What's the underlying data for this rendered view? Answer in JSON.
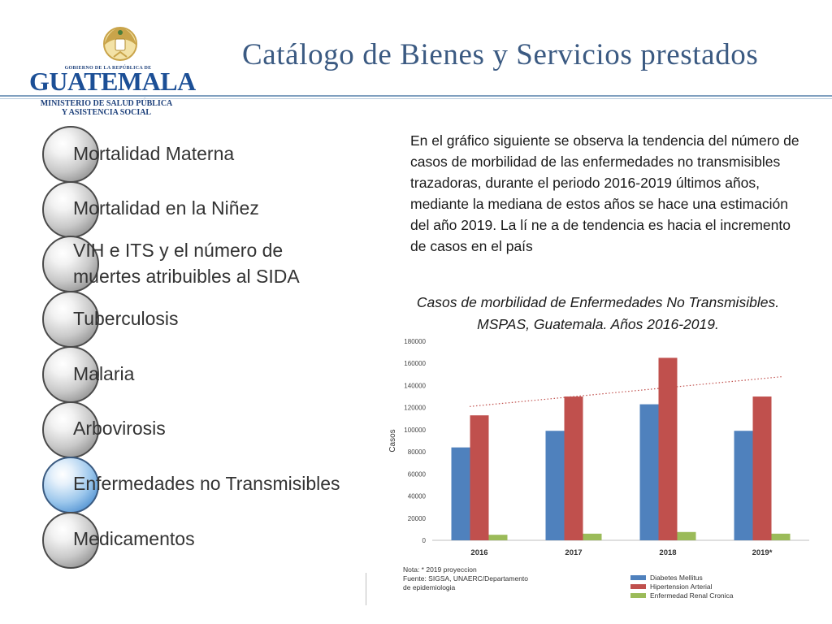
{
  "header": {
    "title": "Catálogo de Bienes y Servicios prestados",
    "logo": {
      "gov_line": "GOBIERNO DE LA REPÚBLICA DE",
      "country": "GUATEMALA",
      "ministry_line1": "MINISTERIO DE SALUD PÚBLICA",
      "ministry_line2": "Y ASISTENCIA SOCIAL"
    }
  },
  "nav": {
    "items": [
      {
        "label": "Mortalidad Materna",
        "active": false
      },
      {
        "label": "Mortalidad en la Niñez",
        "active": false
      },
      {
        "label": "VIH e ITS y el número de",
        "label2": "muertes atribuibles al SIDA",
        "active": false
      },
      {
        "label": "Tuberculosis",
        "active": false
      },
      {
        "label": "Malaria",
        "active": false
      },
      {
        "label": "Arbovirosis",
        "active": false
      },
      {
        "label": "Enfermedades no Transmisibles",
        "active": true
      },
      {
        "label": "Medicamentos",
        "active": false
      }
    ]
  },
  "content": {
    "paragraph": "En el gráfico siguiente se observa la tendencia del número de casos de morbilidad de las enfermedades no transmisibles trazadoras, durante el periodo 2016-2019 últimos años, mediante la mediana de estos años se hace una estimación del año 2019.   La lí ne a de tendencia es hacia el incremento de casos en el país",
    "caption_line1": "Casos de morbilidad de Enfermedades No Transmisibles.",
    "caption_line2": "MSPAS, Guatemala. Años 2016-2019.",
    "note_line1": "Nota: * 2019 proyeccion",
    "note_line2": "Fuente: SIGSA, UNAERC/Departamento",
    "note_line3": "de epidemiologia"
  },
  "colors": {
    "diabetes": "#4f81bd",
    "hipertension": "#c0504d",
    "renal": "#9bbb59",
    "trend": "#c0504d",
    "active_nav": "#4d8fd0"
  },
  "chart_data": {
    "type": "bar",
    "categories": [
      "2016",
      "2017",
      "2018",
      "2019*"
    ],
    "series": [
      {
        "name": "Diabetes Mellitus",
        "values": [
          84000,
          99000,
          123000,
          99000
        ]
      },
      {
        "name": "Hipertension Arterial",
        "values": [
          113000,
          130000,
          165000,
          130000
        ]
      },
      {
        "name": "Enfermedad Renal Cronica",
        "values": [
          5000,
          6000,
          7500,
          6000
        ]
      }
    ],
    "trendline": {
      "style": "dotted",
      "start": 121000,
      "end": 148000
    },
    "ylabel": "Casos",
    "xlabel": "",
    "ylim": [
      0,
      180000
    ],
    "yticks": [
      0,
      20000,
      40000,
      60000,
      80000,
      100000,
      120000,
      140000,
      160000,
      180000
    ],
    "grid": false,
    "legend_position": "bottom-right"
  }
}
